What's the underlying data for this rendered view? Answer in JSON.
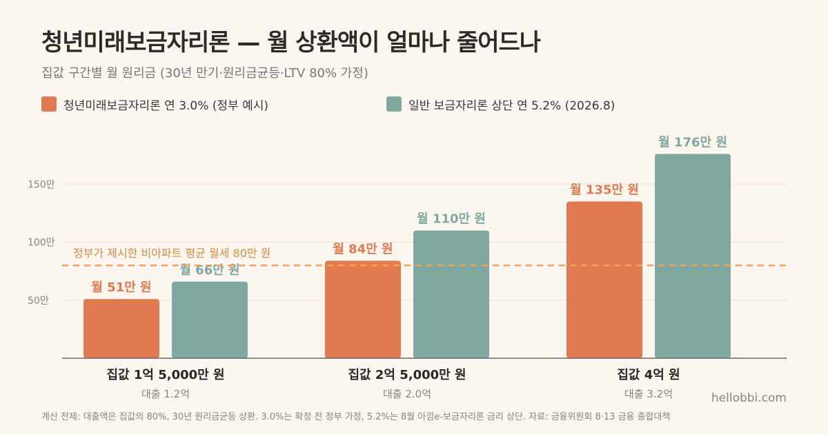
{
  "header": {
    "title": "청년미래보금자리론 — 월 상환액이 얼마나 줄어드나",
    "subtitle": "집값 구간별 월 원리금 (30년 만기·원리금균등·LTV 80% 가정)"
  },
  "legend": [
    {
      "label": "청년미래보금자리론 연 3.0% (정부 예시)",
      "color": "#e07a50"
    },
    {
      "label": "일반 보금자리론 상단 연 5.2% (2026.8)",
      "color": "#80a8a0"
    }
  ],
  "chart_data": {
    "type": "bar",
    "y_unit": "만 원",
    "ylim": [
      0,
      190
    ],
    "y_ticks": [
      {
        "value": 50,
        "label": "50만"
      },
      {
        "value": 100,
        "label": "100만"
      },
      {
        "value": 150,
        "label": "150만"
      }
    ],
    "grid": true,
    "categories": [
      {
        "label": "집값 1억 5,000만 원",
        "sublabel": "대출 1.2억"
      },
      {
        "label": "집값 2억 5,000만 원",
        "sublabel": "대출 2.0억"
      },
      {
        "label": "집값 4억 원",
        "sublabel": "대출 3.2억"
      }
    ],
    "series": [
      {
        "name": "청년미래보금자리론 연 3.0% (정부 예시)",
        "color": "#e07a50",
        "values": [
          51,
          84,
          135
        ],
        "value_labels": [
          "월 51만 원",
          "월 84만 원",
          "월 135만 원"
        ]
      },
      {
        "name": "일반 보금자리론 상단 연 5.2% (2026.8)",
        "color": "#80a8a0",
        "values": [
          66,
          110,
          176
        ],
        "value_labels": [
          "월 66만 원",
          "월 110만 원",
          "월 176만 원"
        ]
      }
    ],
    "reference_line": {
      "value": 80,
      "label": "정부가 제시한 비아파트 평균 월세 80만 원",
      "color": "#f0a35a"
    }
  },
  "footer": {
    "note": "계산 전제: 대출액은 집값의 80%, 30년 원리금균등 상환. 3.0%는 확정 전 정부 가정, 5.2%는 8월 아낌e-보금자리론 금리 상단. 자료: 금융위원회 8·13 금융 종합대책",
    "brand": "hellobbi.com"
  }
}
